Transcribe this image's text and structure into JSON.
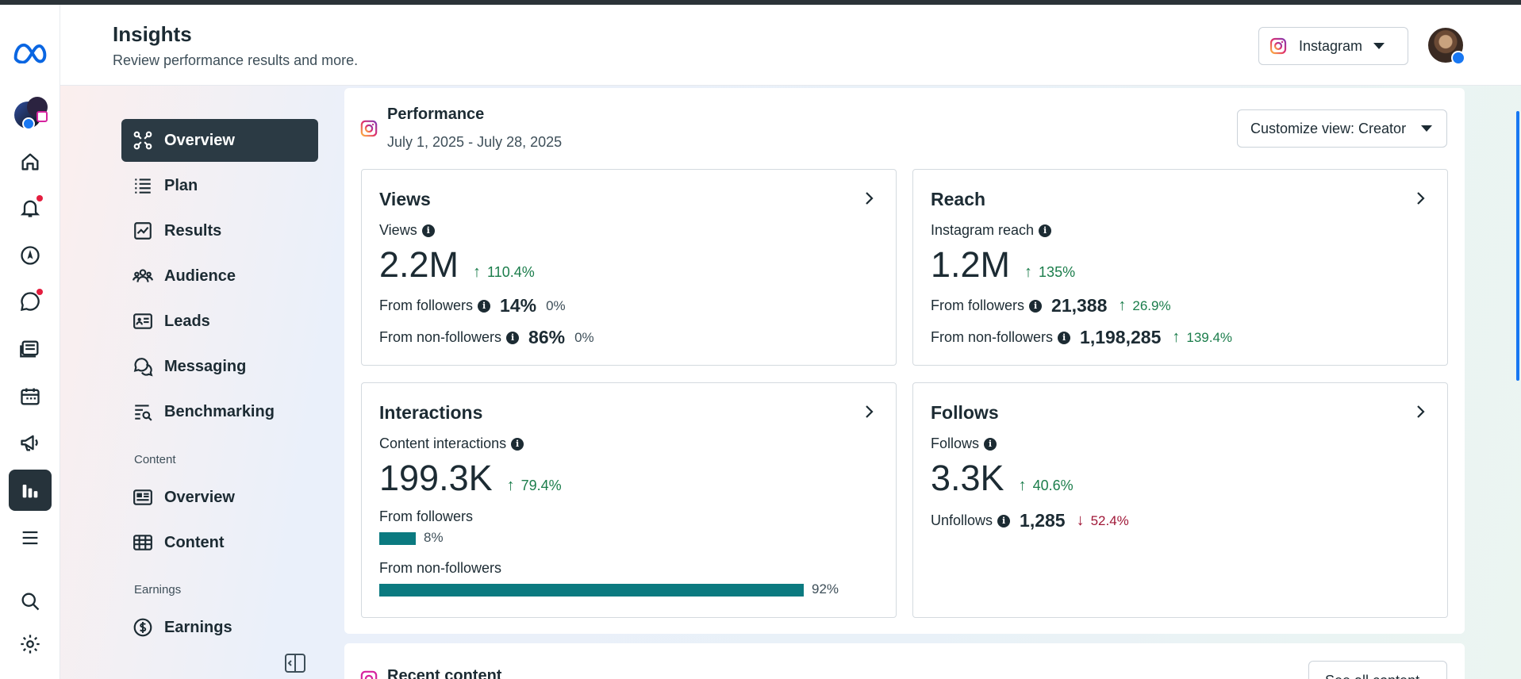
{
  "header": {
    "title": "Insights",
    "subtitle": "Review performance results and more.",
    "platform_label": "Instagram"
  },
  "subnav": {
    "items": [
      {
        "label": "Overview"
      },
      {
        "label": "Plan"
      },
      {
        "label": "Results"
      },
      {
        "label": "Audience"
      },
      {
        "label": "Leads"
      },
      {
        "label": "Messaging"
      },
      {
        "label": "Benchmarking"
      }
    ],
    "content_section": "Content",
    "content_items": [
      {
        "label": "Overview"
      },
      {
        "label": "Content"
      }
    ],
    "earnings_section": "Earnings",
    "earnings_items": [
      {
        "label": "Earnings"
      }
    ]
  },
  "performance": {
    "title": "Performance",
    "date_range": "July 1, 2025 - July 28, 2025",
    "customize_label": "Customize view: Creator"
  },
  "cards": {
    "views": {
      "title": "Views",
      "metric_label": "Views",
      "value": "2.2M",
      "delta": "110.4%",
      "rows": [
        {
          "label": "From followers",
          "value": "14%",
          "delta": "0%"
        },
        {
          "label": "From non-followers",
          "value": "86%",
          "delta": "0%"
        }
      ]
    },
    "reach": {
      "title": "Reach",
      "metric_label": "Instagram reach",
      "value": "1.2M",
      "delta": "135%",
      "rows": [
        {
          "label": "From followers",
          "value": "21,388",
          "delta": "26.9%"
        },
        {
          "label": "From non-followers",
          "value": "1,198,285",
          "delta": "139.4%"
        }
      ]
    },
    "interactions": {
      "title": "Interactions",
      "metric_label": "Content interactions",
      "value": "199.3K",
      "delta": "79.4%",
      "bars": [
        {
          "label": "From followers",
          "pct_text": "8%",
          "fraction": 0.08
        },
        {
          "label": "From non-followers",
          "pct_text": "92%",
          "fraction": 0.92
        }
      ]
    },
    "follows": {
      "title": "Follows",
      "metric_label": "Follows",
      "value": "3.3K",
      "delta": "40.6%",
      "unfollows_label": "Unfollows",
      "unfollows_value": "1,285",
      "unfollows_delta": "52.4%"
    }
  },
  "recent": {
    "title": "Recent content",
    "see_all_label": "See all content"
  },
  "colors": {
    "accent_dark": "#2b3a44",
    "positive": "#1b7d4b",
    "negative": "#a01838",
    "bar": "#0b7a80"
  }
}
